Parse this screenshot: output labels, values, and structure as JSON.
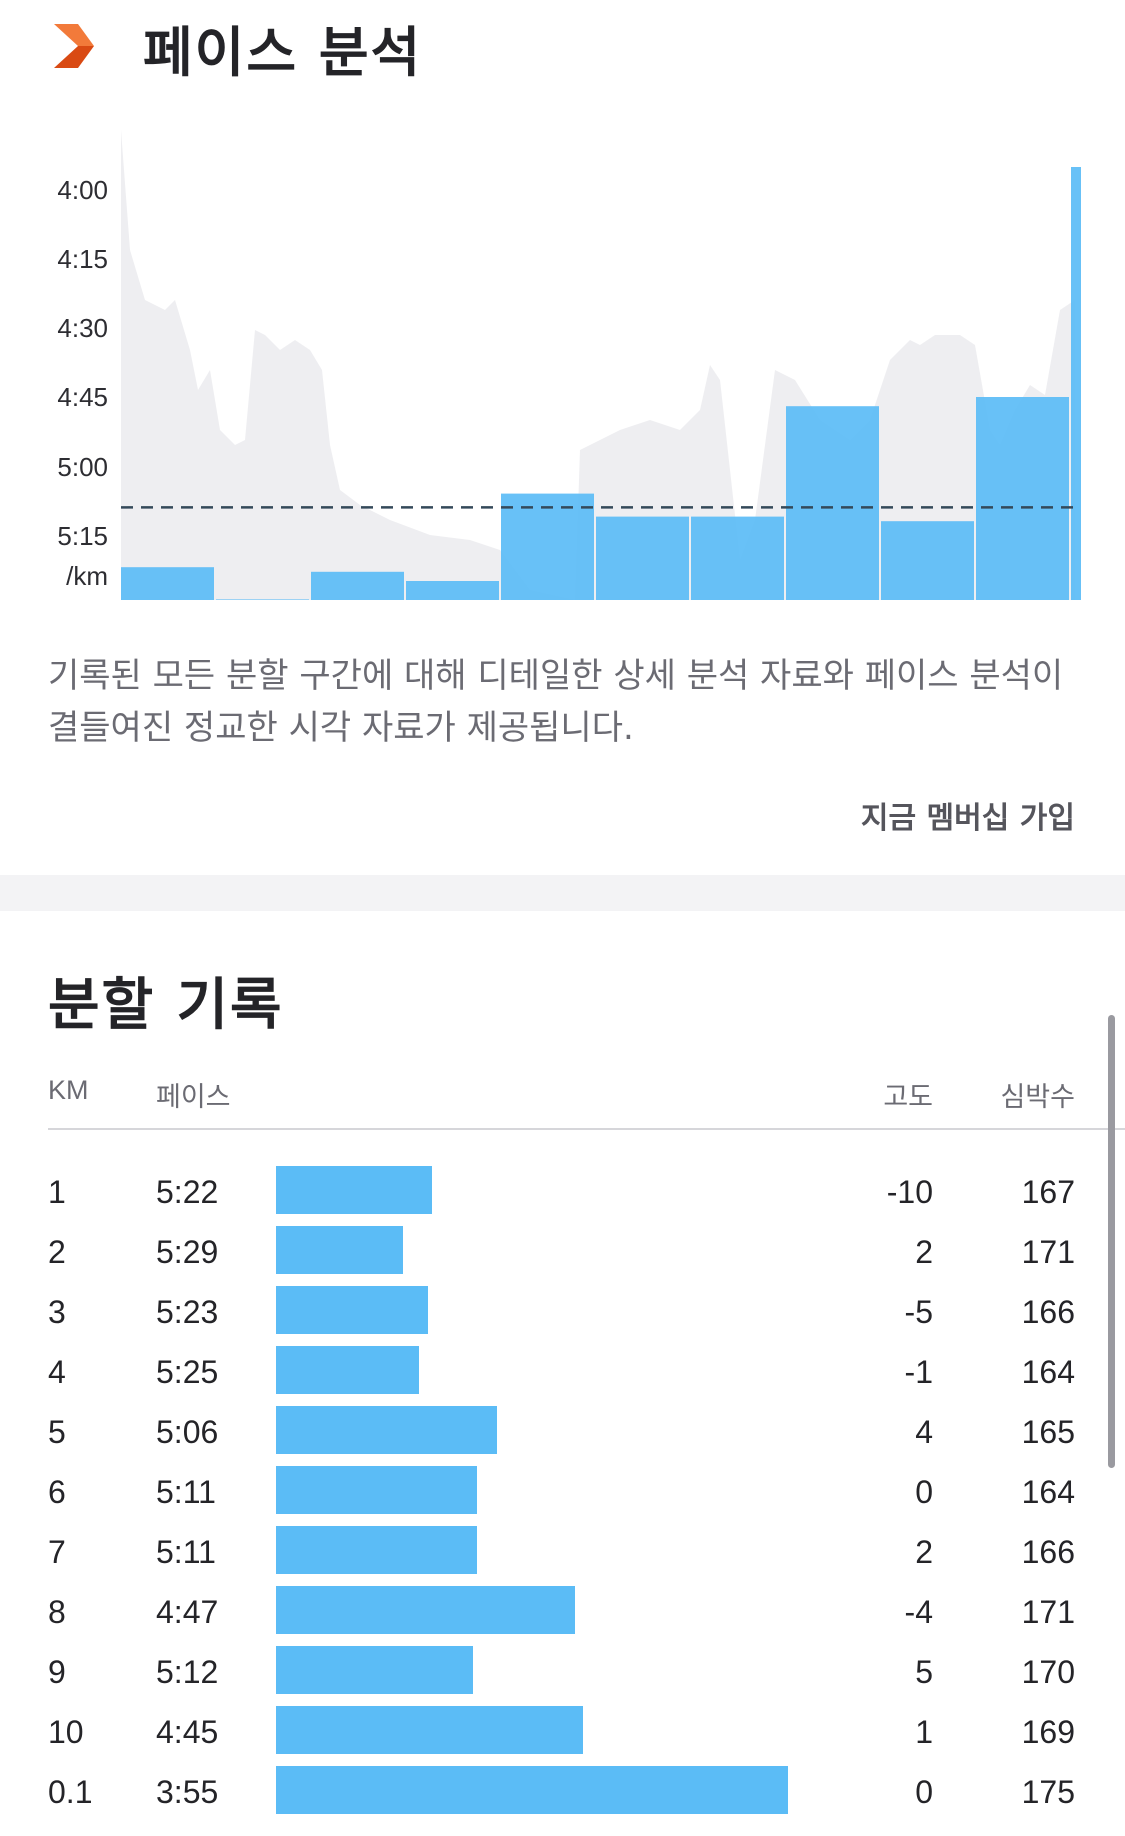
{
  "app": {
    "accent": "#fc5200",
    "bar_color": "#5bbcf6"
  },
  "pace_section": {
    "title": "페이스 분석",
    "description": "기록된 모든 분할 구간에 대해 디테일한 상세 분석 자료와 페이스 분석이 결들여진 정교한 시각 자료가 제공됩니다.",
    "join_label": "지금 멤버십 가입"
  },
  "splits_section": {
    "title": "분할 기록",
    "headers": {
      "km": "KM",
      "pace": "페이스",
      "elevation": "고도",
      "heart_rate": "심박수"
    },
    "rows": [
      {
        "km": "1",
        "pace": "5:22",
        "elevation": "-10",
        "heart_rate": "167",
        "pace_seconds": 322
      },
      {
        "km": "2",
        "pace": "5:29",
        "elevation": "2",
        "heart_rate": "171",
        "pace_seconds": 329
      },
      {
        "km": "3",
        "pace": "5:23",
        "elevation": "-5",
        "heart_rate": "166",
        "pace_seconds": 323
      },
      {
        "km": "4",
        "pace": "5:25",
        "elevation": "-1",
        "heart_rate": "164",
        "pace_seconds": 325
      },
      {
        "km": "5",
        "pace": "5:06",
        "elevation": "4",
        "heart_rate": "165",
        "pace_seconds": 306
      },
      {
        "km": "6",
        "pace": "5:11",
        "elevation": "0",
        "heart_rate": "164",
        "pace_seconds": 311
      },
      {
        "km": "7",
        "pace": "5:11",
        "elevation": "2",
        "heart_rate": "166",
        "pace_seconds": 311
      },
      {
        "km": "8",
        "pace": "4:47",
        "elevation": "-4",
        "heart_rate": "171",
        "pace_seconds": 287
      },
      {
        "km": "9",
        "pace": "5:12",
        "elevation": "5",
        "heart_rate": "170",
        "pace_seconds": 312
      },
      {
        "km": "10",
        "pace": "4:45",
        "elevation": "1",
        "heart_rate": "169",
        "pace_seconds": 285
      },
      {
        "km": "0.1",
        "pace": "3:55",
        "elevation": "0",
        "heart_rate": "175",
        "pace_seconds": 235
      }
    ]
  },
  "chart_data": {
    "type": "bar",
    "title": "페이스 분석",
    "ylabel": "/km",
    "y_ticks": [
      "4:00",
      "4:15",
      "4:30",
      "4:45",
      "5:00",
      "5:15"
    ],
    "y_tick_seconds": [
      240,
      255,
      270,
      285,
      300,
      315
    ],
    "y_inverted": true,
    "ylim_seconds": [
      240,
      325
    ],
    "x": [
      1,
      2,
      3,
      4,
      5,
      6,
      7,
      8,
      9,
      10,
      0.1
    ],
    "series": [
      {
        "values_seconds": [
          322,
          329,
          323,
          325,
          306,
          311,
          311,
          287,
          312,
          285,
          235
        ],
        "values": [
          "5:22",
          "5:29",
          "5:23",
          "5:25",
          "5:06",
          "5:11",
          "5:11",
          "4:47",
          "5:12",
          "4:45",
          "3:55"
        ]
      }
    ],
    "average_line_seconds": 309,
    "grid": false,
    "background_area_color": "#ebebee"
  }
}
